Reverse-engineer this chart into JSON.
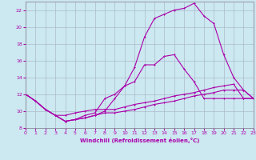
{
  "xlabel": "Windchill (Refroidissement éolien,°C)",
  "bg_color": "#cce8f0",
  "line_color": "#aa00aa",
  "grid_color": "#aabbcc",
  "xmin": 0,
  "xmax": 23,
  "ymin": 8,
  "ymax": 23,
  "series1_x": [
    0,
    1,
    2,
    3,
    4,
    5,
    6,
    7,
    8,
    9,
    10,
    11,
    12,
    13,
    14,
    15,
    16,
    17,
    18,
    19,
    20,
    21,
    22,
    23
  ],
  "series1_y": [
    12,
    11.2,
    10.2,
    9.5,
    9.5,
    9.8,
    10.0,
    10.2,
    10.2,
    10.2,
    10.5,
    10.8,
    11.0,
    11.2,
    11.5,
    11.8,
    12.0,
    12.2,
    12.5,
    12.8,
    13.0,
    13.2,
    11.5,
    11.5
  ],
  "series2_x": [
    0,
    1,
    2,
    3,
    4,
    5,
    6,
    7,
    8,
    9,
    10,
    11,
    12,
    13,
    14,
    15,
    16,
    17,
    18,
    19,
    20,
    21,
    22,
    23
  ],
  "series2_y": [
    12,
    11.2,
    10.2,
    9.5,
    8.8,
    9.0,
    9.2,
    9.5,
    9.8,
    9.8,
    10.0,
    10.2,
    10.5,
    10.8,
    11.0,
    11.2,
    11.5,
    11.8,
    12.0,
    12.2,
    12.5,
    12.5,
    12.5,
    11.5
  ],
  "series3_x": [
    0,
    1,
    2,
    3,
    4,
    5,
    6,
    7,
    8,
    9,
    10,
    11,
    12,
    13,
    14,
    15,
    16,
    17,
    18,
    19,
    20,
    21,
    22,
    23
  ],
  "series3_y": [
    12,
    11.2,
    10.2,
    9.5,
    8.8,
    9.0,
    9.5,
    9.8,
    11.5,
    12.0,
    13.0,
    15.2,
    18.8,
    21.0,
    21.5,
    22.0,
    22.2,
    22.8,
    21.3,
    20.4,
    16.7,
    14.0,
    12.5,
    11.5
  ],
  "series4_x": [
    0,
    1,
    2,
    3,
    4,
    5,
    6,
    7,
    8,
    9,
    10,
    11,
    12,
    13,
    14,
    15,
    16,
    17,
    18,
    19,
    20,
    21,
    22,
    23
  ],
  "series4_y": [
    12,
    11.2,
    10.2,
    9.5,
    8.8,
    9.0,
    9.2,
    9.5,
    10.0,
    11.5,
    13.0,
    13.5,
    15.5,
    15.5,
    16.5,
    16.7,
    15.0,
    13.5,
    11.5,
    11.5,
    11.5,
    11.5,
    11.5,
    11.5
  ]
}
